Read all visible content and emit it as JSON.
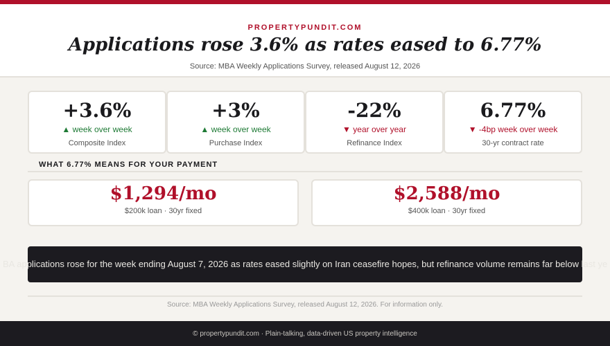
{
  "brand": "PROPERTYPUNDIT.COM",
  "headline": "Applications rose 3.6% as rates eased to 6.77%",
  "source": "Source: MBA Weekly Applications Survey, released August 12, 2026",
  "stats": [
    {
      "value": "+3.6%",
      "direction": "up",
      "arrow": "▲",
      "change": "week over week",
      "label": "Composite Index"
    },
    {
      "value": "+3%",
      "direction": "up",
      "arrow": "▲",
      "change": "week over week",
      "label": "Purchase Index"
    },
    {
      "value": "-22%",
      "direction": "down",
      "arrow": "▼",
      "change": "year over year",
      "label": "Refinance Index"
    },
    {
      "value": "6.77%",
      "direction": "down",
      "arrow": "▼",
      "change": "-4bp week over week",
      "label": "30-yr contract rate"
    }
  ],
  "payment_section_title": "WHAT 6.77% MEANS FOR YOUR PAYMENT",
  "payments": [
    {
      "amount": "$1,294/mo",
      "label": "$200k loan · 30yr fixed"
    },
    {
      "amount": "$2,588/mo",
      "label": "$400k loan · 30yr fixed"
    }
  ],
  "banner_text": "BA applications rose for the week ending August 7, 2026 as rates eased slightly on Iran ceasefire hopes, but refinance volume remains far below last ye",
  "footnote": "Source: MBA Weekly Applications Survey, released August 12, 2026. For information only.",
  "footer": "© propertypundit.com · Plain-talking, data-driven US property intelligence",
  "colors": {
    "accent": "#b0102a",
    "up": "#1e7a35",
    "dark": "#1c1b20"
  }
}
